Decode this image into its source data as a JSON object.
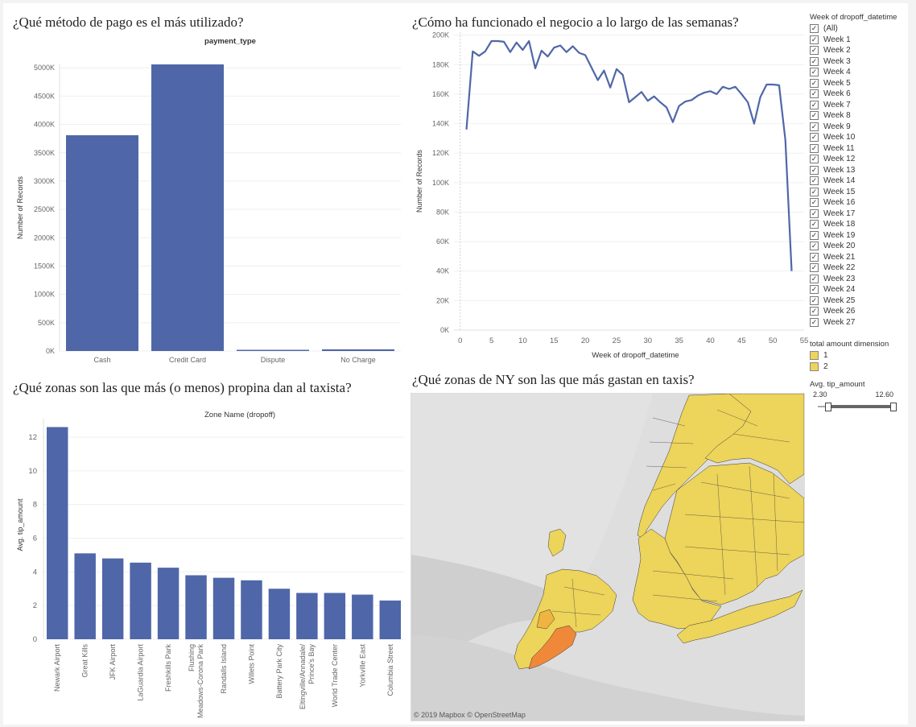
{
  "colors": {
    "bar": "#4f67a8",
    "line": "#4f67a8",
    "map_yellow": "#edd45a",
    "map_orange": "#f0883a",
    "grid": "#efefef"
  },
  "titles": {
    "payment": "¿Qué método de pago es el más utilizado?",
    "weekly": "¿Cómo ha funcionado el negocio a lo largo de las semanas?",
    "tips": "¿Qué zonas son las que más (o menos) propina dan al taxista?",
    "map": "¿Qué zonas de NY son las que más gastan en taxis?"
  },
  "legend": {
    "week_header": "Week of dropoff_datetime",
    "week_items": [
      "(All)",
      "Week 1",
      "Week 2",
      "Week 3",
      "Week 4",
      "Week 5",
      "Week 6",
      "Week 7",
      "Week 8",
      "Week 9",
      "Week 10",
      "Week 11",
      "Week 12",
      "Week 13",
      "Week 14",
      "Week 15",
      "Week 16",
      "Week 17",
      "Week 18",
      "Week 19",
      "Week 20",
      "Week 21",
      "Week 22",
      "Week 23",
      "Week 24",
      "Week 25",
      "Week 26",
      "Week 27"
    ],
    "amount_header": "total amount dimension",
    "amount_items": [
      "1",
      "2"
    ],
    "tip_header": "Avg. tip_amount",
    "tip_min": "2.30",
    "tip_max": "12.60",
    "tip_range": [
      2.3,
      12.6
    ]
  },
  "map": {
    "attribution": "© 2019 Mapbox  © OpenStreetMap"
  },
  "chart_data": [
    {
      "type": "bar",
      "title": "payment_type",
      "xlabel": "",
      "ylabel": "Number of Records",
      "categories": [
        "Cash",
        "Credit Card",
        "Dispute",
        "No Charge"
      ],
      "values": [
        3810000,
        5060000,
        18000,
        30000
      ],
      "ylim": [
        0,
        5060000
      ],
      "yticks": [
        0,
        500000,
        1000000,
        1500000,
        2000000,
        2500000,
        3000000,
        3500000,
        4000000,
        4500000,
        5000000
      ],
      "ytick_labels": [
        "0K",
        "500K",
        "1000K",
        "1500K",
        "2000K",
        "2500K",
        "3000K",
        "3500K",
        "4000K",
        "4500K",
        "5000K"
      ]
    },
    {
      "type": "line",
      "title": "",
      "xlabel": "Week of dropoff_datetime",
      "ylabel": "Number of Records",
      "x": [
        1,
        2,
        3,
        4,
        5,
        6,
        7,
        8,
        9,
        10,
        11,
        12,
        13,
        14,
        15,
        16,
        17,
        18,
        19,
        20,
        21,
        22,
        23,
        24,
        25,
        26,
        27,
        28,
        29,
        30,
        31,
        32,
        33,
        34,
        35,
        36,
        37,
        38,
        39,
        40,
        41,
        42,
        43,
        44,
        45,
        46,
        47,
        48,
        49,
        50,
        51,
        52,
        53
      ],
      "values": [
        136000,
        189000,
        186000,
        189000,
        196000,
        196000,
        195500,
        188500,
        195000,
        190000,
        196000,
        177500,
        189500,
        185500,
        191500,
        193000,
        188500,
        192500,
        188000,
        186500,
        178000,
        169500,
        176000,
        164500,
        177000,
        173000,
        154500,
        158000,
        161500,
        155500,
        158500,
        154500,
        151000,
        141000,
        152000,
        155000,
        156000,
        159000,
        161000,
        162000,
        160000,
        165000,
        163500,
        165000,
        160000,
        154500,
        140000,
        158000,
        166500,
        166500,
        166000,
        129000,
        40000
      ],
      "xlim": [
        -1,
        55
      ],
      "ylim": [
        0,
        202000
      ],
      "xticks": [
        0,
        5,
        10,
        15,
        20,
        25,
        30,
        35,
        40,
        45,
        50,
        55
      ],
      "yticks": [
        0,
        20000,
        40000,
        60000,
        80000,
        100000,
        120000,
        140000,
        160000,
        180000,
        200000
      ],
      "ytick_labels": [
        "0K",
        "20K",
        "40K",
        "60K",
        "80K",
        "100K",
        "120K",
        "140K",
        "160K",
        "180K",
        "200K"
      ]
    },
    {
      "type": "bar",
      "title": "Zone Name (dropoff)",
      "xlabel": "",
      "ylabel": "Avg. tip_amount",
      "categories": [
        "Newark Airport",
        "Great Kills",
        "JFK Airport",
        "LaGuardia Airport",
        "Freshkills Park",
        "Flushing Meadows-Corona Park",
        "Randalls Island",
        "Willets Point",
        "Battery Park City",
        "Eltingville/Annadale/Prince's Bay",
        "World Trade Center",
        "Yorkville East",
        "Columbia Street"
      ],
      "label_lines": [
        [
          "Newark Airport"
        ],
        [
          "Great Kills"
        ],
        [
          "JFK Airport"
        ],
        [
          "LaGuardia Airport"
        ],
        [
          "Freshkills Park"
        ],
        [
          "Flushing",
          "Meadows-Corona Park"
        ],
        [
          "Randalls Island"
        ],
        [
          "Willets Point"
        ],
        [
          "Battery Park City"
        ],
        [
          "Eltingville/Annadale/",
          "Prince's Bay"
        ],
        [
          "World Trade Center"
        ],
        [
          "Yorkville East"
        ],
        [
          "Columbia Street"
        ]
      ],
      "values": [
        12.6,
        5.1,
        4.8,
        4.55,
        4.25,
        3.8,
        3.65,
        3.5,
        3.0,
        2.75,
        2.75,
        2.65,
        2.3
      ],
      "ylim": [
        0,
        13.1
      ],
      "yticks": [
        0,
        2,
        4,
        6,
        8,
        10,
        12
      ]
    }
  ]
}
